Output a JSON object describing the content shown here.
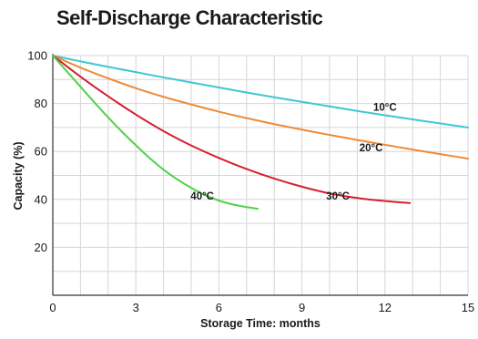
{
  "chart_data": {
    "type": "line",
    "title": "Self-Discharge Characteristic",
    "xlabel": "Storage Time: months",
    "ylabel": "Capacity (%)",
    "xlim": [
      0,
      15
    ],
    "ylim": [
      0,
      100
    ],
    "x_ticks": [
      0,
      3,
      6,
      9,
      12,
      15
    ],
    "y_ticks": [
      20,
      40,
      60,
      80,
      100
    ],
    "x_minor_step": 1,
    "y_minor_step": 10,
    "grid": true,
    "legend": "none",
    "series": [
      {
        "name": "10°C",
        "color": "#3fc6d4",
        "points": [
          [
            0,
            100
          ],
          [
            1,
            97.6
          ],
          [
            2,
            95.3
          ],
          [
            3,
            93.1
          ],
          [
            4,
            90.9
          ],
          [
            5,
            88.8
          ],
          [
            6,
            86.7
          ],
          [
            7,
            84.6
          ],
          [
            8,
            82.6
          ],
          [
            9,
            80.7
          ],
          [
            10,
            78.8
          ],
          [
            11,
            76.9
          ],
          [
            12,
            75.1
          ],
          [
            13,
            73.4
          ],
          [
            14,
            71.7
          ],
          [
            15,
            70.0
          ]
        ]
      },
      {
        "name": "20°C",
        "color": "#ef8a36",
        "points": [
          [
            0,
            100
          ],
          [
            1,
            95.0
          ],
          [
            2,
            90.5
          ],
          [
            3,
            86.4
          ],
          [
            4,
            82.8
          ],
          [
            5,
            79.6
          ],
          [
            6,
            76.6
          ],
          [
            7,
            73.9
          ],
          [
            8,
            71.4
          ],
          [
            9,
            69.1
          ],
          [
            10,
            66.9
          ],
          [
            11,
            64.8
          ],
          [
            12,
            62.8
          ],
          [
            13,
            60.8
          ],
          [
            14,
            58.9
          ],
          [
            15,
            57.0
          ]
        ]
      },
      {
        "name": "30°C",
        "color": "#d42030",
        "points": [
          [
            0,
            100
          ],
          [
            1,
            91.2
          ],
          [
            2,
            83.0
          ],
          [
            3,
            75.4
          ],
          [
            4,
            68.5
          ],
          [
            5,
            62.5
          ],
          [
            6,
            57.3
          ],
          [
            7,
            52.7
          ],
          [
            8,
            48.7
          ],
          [
            9,
            45.3
          ],
          [
            10,
            42.5
          ],
          [
            11,
            40.6
          ],
          [
            12,
            39.3
          ],
          [
            12.9,
            38.5
          ]
        ]
      },
      {
        "name": "40°C",
        "color": "#4fd14a",
        "points": [
          [
            0,
            100
          ],
          [
            0.5,
            93.5
          ],
          [
            1,
            87.0
          ],
          [
            1.5,
            80.5
          ],
          [
            2,
            74.2
          ],
          [
            2.5,
            68.2
          ],
          [
            3,
            62.6
          ],
          [
            3.5,
            57.2
          ],
          [
            4,
            52.4
          ],
          [
            4.5,
            48.3
          ],
          [
            5,
            44.8
          ],
          [
            5.5,
            41.8
          ],
          [
            6,
            39.5
          ],
          [
            6.5,
            37.9
          ],
          [
            7,
            36.8
          ],
          [
            7.4,
            36.1
          ]
        ]
      }
    ],
    "annotations": [
      {
        "text": "10°C",
        "x": 12,
        "y": 77
      },
      {
        "text": "20°C",
        "x": 11.5,
        "y": 60
      },
      {
        "text": "30°C",
        "x": 10.3,
        "y": 40
      },
      {
        "text": "40°C",
        "x": 5.4,
        "y": 40
      }
    ]
  }
}
